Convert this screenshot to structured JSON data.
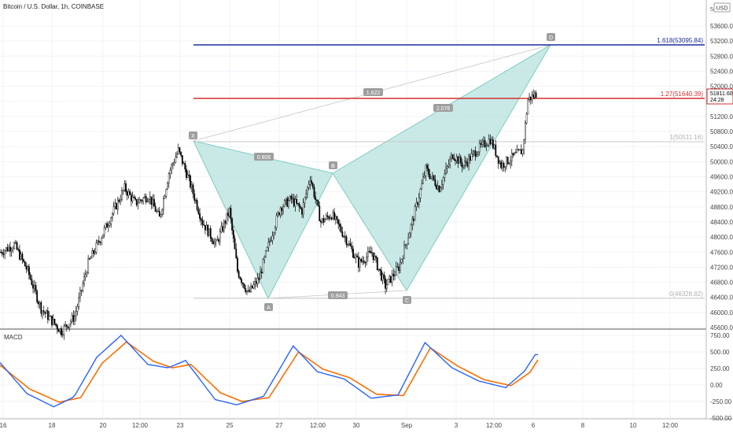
{
  "header": {
    "symbol_title": "Bitcoin / U.S. Dollar, 1h, COINBASE",
    "currency_badge": "USD",
    "top_price_partial": "54…"
  },
  "price_axis": {
    "ticks": [
      "53600.00",
      "53200.00",
      "52800.00",
      "52400.00",
      "52000.00",
      "51600.00",
      "51200.00",
      "50800.00",
      "50400.00",
      "50000.00",
      "49600.00",
      "49200.00",
      "48800.00",
      "48400.00",
      "48000.00",
      "47600.00",
      "47200.00",
      "46800.00",
      "46400.00",
      "46000.00",
      "45600.00"
    ],
    "last_price": "51811.60",
    "countdown": "24:28"
  },
  "macd_axis": {
    "title": "MACD",
    "ticks": [
      "750.00",
      "500.00",
      "250.00",
      "0.00",
      "-250.00",
      "-500.00"
    ]
  },
  "time_axis": {
    "labels": [
      "16",
      "18",
      "20",
      "12:00",
      "23",
      "25",
      "27",
      "12:00",
      "30",
      "Sep",
      "3",
      "12:00",
      "6",
      "8",
      "10",
      "12:00"
    ]
  },
  "pattern": {
    "point_labels": {
      "X": "X",
      "A": "A",
      "B": "B",
      "C": "C",
      "D": "D"
    },
    "ratios": {
      "xb": "0.806",
      "ac": "0.943",
      "bd": "2.076",
      "xd": "1.622"
    },
    "fib_levels": {
      "l1618": "1.618(53095.84)",
      "l127": "1.27(51640.39)",
      "l1": "1(50511.16)",
      "l0": "0(46328.82)"
    }
  },
  "colors": {
    "up_candle": "#ffffff",
    "down_candle": "#000000",
    "pattern_fill": "#b2dfdb",
    "fib_1618": "#1e2d9e",
    "fib_127": "#d32f2f",
    "macd_line": "#2962ff",
    "signal_line": "#ff6d00"
  },
  "chart_data": {
    "type": "candlestick",
    "title": "Bitcoin / U.S. Dollar, 1h, COINBASE",
    "ylim": [
      45600,
      54000
    ],
    "x": [
      "16",
      "18",
      "20",
      "12:00",
      "23",
      "25",
      "27",
      "12:00",
      "30",
      "Sep",
      "3",
      "12:00",
      "6",
      "8",
      "10",
      "12:00"
    ],
    "price_path": [
      {
        "i": 0,
        "p": 47600
      },
      {
        "i": 10,
        "p": 47800
      },
      {
        "i": 20,
        "p": 47100
      },
      {
        "i": 30,
        "p": 46100
      },
      {
        "i": 45,
        "p": 45500
      },
      {
        "i": 55,
        "p": 45900
      },
      {
        "i": 65,
        "p": 47300
      },
      {
        "i": 80,
        "p": 48400
      },
      {
        "i": 92,
        "p": 49300
      },
      {
        "i": 100,
        "p": 48900
      },
      {
        "i": 110,
        "p": 49100
      },
      {
        "i": 118,
        "p": 48500
      },
      {
        "i": 125,
        "p": 49700
      },
      {
        "i": 132,
        "p": 50300
      },
      {
        "i": 140,
        "p": 49500
      },
      {
        "i": 150,
        "p": 48400
      },
      {
        "i": 160,
        "p": 47800
      },
      {
        "i": 170,
        "p": 48700
      },
      {
        "i": 176,
        "p": 47100
      },
      {
        "i": 184,
        "p": 46500
      },
      {
        "i": 192,
        "p": 46900
      },
      {
        "i": 200,
        "p": 47900
      },
      {
        "i": 208,
        "p": 48800
      },
      {
        "i": 216,
        "p": 49000
      },
      {
        "i": 224,
        "p": 48700
      },
      {
        "i": 230,
        "p": 49600
      },
      {
        "i": 238,
        "p": 48400
      },
      {
        "i": 246,
        "p": 48600
      },
      {
        "i": 256,
        "p": 48000
      },
      {
        "i": 266,
        "p": 47300
      },
      {
        "i": 276,
        "p": 47600
      },
      {
        "i": 286,
        "p": 46700
      },
      {
        "i": 296,
        "p": 47200
      },
      {
        "i": 306,
        "p": 48400
      },
      {
        "i": 316,
        "p": 49800
      },
      {
        "i": 326,
        "p": 49300
      },
      {
        "i": 336,
        "p": 50200
      },
      {
        "i": 344,
        "p": 49900
      },
      {
        "i": 354,
        "p": 50300
      },
      {
        "i": 364,
        "p": 50600
      },
      {
        "i": 372,
        "p": 49900
      },
      {
        "i": 380,
        "p": 50100
      },
      {
        "i": 388,
        "p": 50300
      },
      {
        "i": 392,
        "p": 51650
      },
      {
        "i": 398,
        "p": 51800
      }
    ],
    "last_price": 51811.6,
    "macd": {
      "ylim": [
        -500,
        750
      ],
      "series": [
        {
          "name": "MACD",
          "path": [
            {
              "i": 0,
              "v": 340
            },
            {
              "i": 20,
              "v": -130
            },
            {
              "i": 40,
              "v": -330
            },
            {
              "i": 55,
              "v": -180
            },
            {
              "i": 72,
              "v": 420
            },
            {
              "i": 90,
              "v": 750
            },
            {
              "i": 110,
              "v": 310
            },
            {
              "i": 125,
              "v": 260
            },
            {
              "i": 138,
              "v": 370
            },
            {
              "i": 160,
              "v": -220
            },
            {
              "i": 176,
              "v": -300
            },
            {
              "i": 196,
              "v": -170
            },
            {
              "i": 218,
              "v": 590
            },
            {
              "i": 236,
              "v": 200
            },
            {
              "i": 256,
              "v": 90
            },
            {
              "i": 276,
              "v": -200
            },
            {
              "i": 296,
              "v": -150
            },
            {
              "i": 316,
              "v": 640
            },
            {
              "i": 336,
              "v": 260
            },
            {
              "i": 356,
              "v": 60
            },
            {
              "i": 376,
              "v": -40
            },
            {
              "i": 390,
              "v": 210
            },
            {
              "i": 398,
              "v": 460
            }
          ]
        },
        {
          "name": "Signal",
          "path": [
            {
              "i": 0,
              "v": 300
            },
            {
              "i": 22,
              "v": -60
            },
            {
              "i": 44,
              "v": -260
            },
            {
              "i": 60,
              "v": -190
            },
            {
              "i": 76,
              "v": 330
            },
            {
              "i": 94,
              "v": 650
            },
            {
              "i": 114,
              "v": 360
            },
            {
              "i": 128,
              "v": 260
            },
            {
              "i": 142,
              "v": 310
            },
            {
              "i": 164,
              "v": -120
            },
            {
              "i": 180,
              "v": -250
            },
            {
              "i": 200,
              "v": -190
            },
            {
              "i": 222,
              "v": 500
            },
            {
              "i": 240,
              "v": 240
            },
            {
              "i": 260,
              "v": 110
            },
            {
              "i": 280,
              "v": -140
            },
            {
              "i": 300,
              "v": -160
            },
            {
              "i": 320,
              "v": 560
            },
            {
              "i": 340,
              "v": 290
            },
            {
              "i": 360,
              "v": 80
            },
            {
              "i": 380,
              "v": -10
            },
            {
              "i": 394,
              "v": 190
            },
            {
              "i": 400,
              "v": 380
            }
          ]
        }
      ]
    },
    "bat_pattern": {
      "X": {
        "date": "23",
        "price": 50511
      },
      "A": {
        "date": "27",
        "price": 46328
      },
      "B": {
        "date": "28 12:00",
        "price": 49700
      },
      "C": {
        "date": "Sep 1",
        "price": 46480
      },
      "D": {
        "date": "6",
        "price": 53095
      }
    }
  }
}
